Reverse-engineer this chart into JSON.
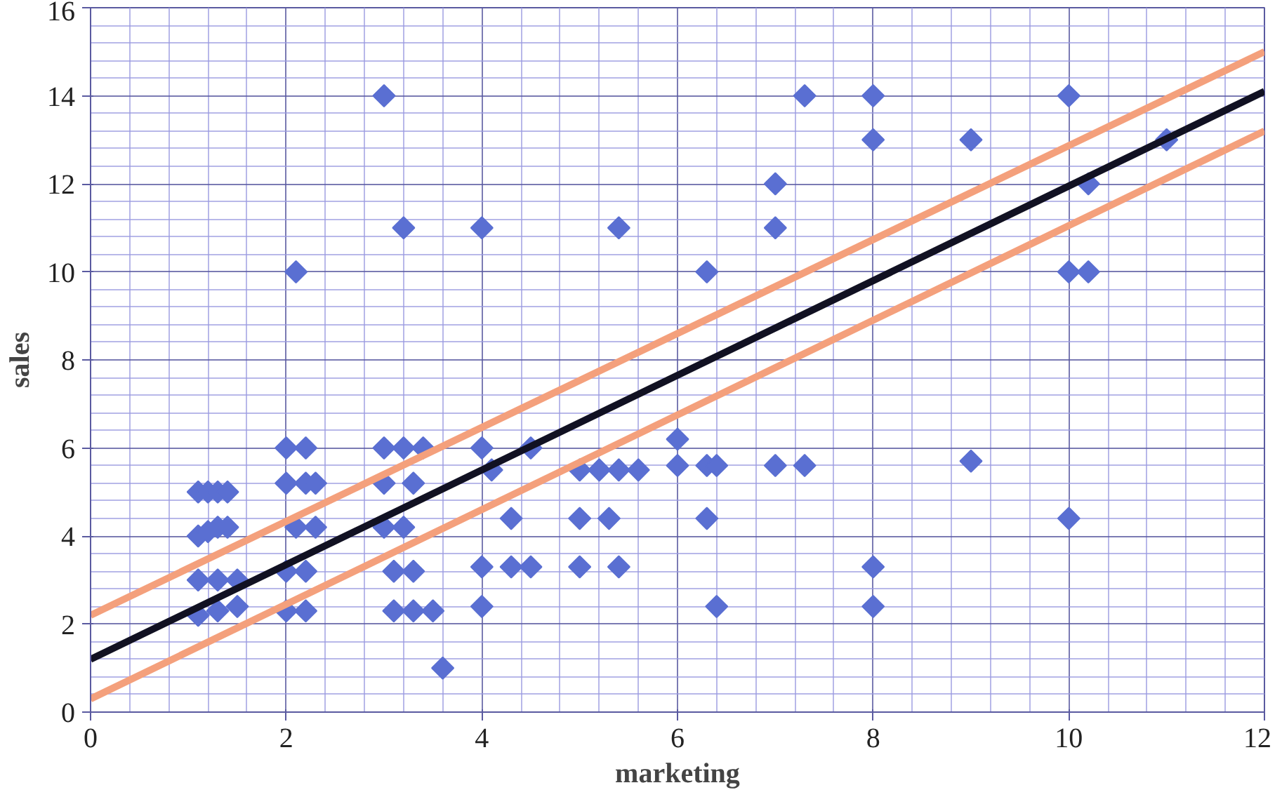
{
  "chart_data": {
    "type": "scatter",
    "xlabel": "marketing",
    "ylabel": "sales",
    "marker": "none",
    "xlim": [
      0,
      12
    ],
    "ylim": [
      0,
      16
    ],
    "xticks": [
      0,
      {
        "value": 0.4,
        "label": null
      },
      {
        "value": 0.8,
        "label": null
      },
      {
        "value": 1.2,
        "label": null
      },
      {
        "value": 1.6,
        "label": null
      },
      2,
      {
        "value": 2.4,
        "label": null
      },
      {
        "value": 2.8,
        "label": null
      },
      {
        "value": 3.2,
        "label": null
      },
      {
        "value": 3.6,
        "label": null
      },
      4,
      {
        "value": 4.4,
        "label": null
      },
      {
        "value": 4.8,
        "label": null
      },
      {
        "value": 5.2,
        "label": null
      },
      {
        "value": 5.6,
        "label": null
      },
      6,
      {
        "value": 6.4,
        "label": null
      },
      {
        "value": 6.8,
        "label": null
      },
      {
        "value": 7.2,
        "label": null
      },
      {
        "value": 7.6,
        "label": null
      },
      8,
      {
        "value": 8.4,
        "label": null
      },
      {
        "value": 8.8,
        "label": null
      },
      {
        "value": 9.2,
        "label": null
      },
      {
        "value": 9.6,
        "label": null
      },
      10,
      {
        "value": 10.4,
        "label": null
      },
      {
        "value": 10.8,
        "label": null
      },
      {
        "value": 11.2,
        "label": null
      },
      {
        "value": 11.6,
        "label": null
      },
      12
    ],
    "yticks": [
      0,
      {
        "value": 0.4,
        "label": null
      },
      {
        "value": 0.8,
        "label": null
      },
      {
        "value": 1.2,
        "label": null
      },
      {
        "value": 1.6,
        "label": null
      },
      2,
      {
        "value": 2.4,
        "label": null
      },
      {
        "value": 2.8,
        "label": null
      },
      {
        "value": 3.2,
        "label": null
      },
      {
        "value": 3.6,
        "label": null
      },
      4,
      {
        "value": 4.4,
        "label": null
      },
      {
        "value": 4.8,
        "label": null
      },
      {
        "value": 5.2,
        "label": null
      },
      {
        "value": 5.6,
        "label": null
      },
      6,
      {
        "value": 6.4,
        "label": null
      },
      {
        "value": 6.8,
        "label": null
      },
      {
        "value": 7.2,
        "label": null
      },
      {
        "value": 7.6,
        "label": null
      },
      8,
      {
        "value": 8.4,
        "label": null
      },
      {
        "value": 8.8,
        "label": null
      },
      {
        "value": 9.2,
        "label": null
      },
      {
        "value": 9.6,
        "label": null
      },
      10,
      {
        "value": 10.4,
        "label": null
      },
      {
        "value": 10.8,
        "label": null
      },
      {
        "value": 11.2,
        "label": null
      },
      {
        "value": 11.6,
        "label": null
      },
      12,
      {
        "value": 12.4,
        "label": null
      },
      {
        "value": 12.8,
        "label": null
      },
      {
        "value": 13.2,
        "label": null
      },
      {
        "value": 13.6,
        "label": null
      },
      14,
      {
        "value": 14.4,
        "label": null
      },
      {
        "value": 14.8,
        "label": null
      },
      {
        "value": 15.2,
        "label": null
      },
      {
        "value": 15.6,
        "label": null
      },
      16
    ],
    "grid": true,
    "series": [
      {
        "marker": "diamond",
        "color": "#5a6fd2",
        "x": [
          1.1,
          1.2,
          1.3,
          1.4,
          1.1,
          1.2,
          1.3,
          1.4,
          1.1,
          1.3,
          1.5,
          1.1,
          1.3,
          1.5,
          2.0,
          2.1,
          2.2,
          2.0,
          2.2,
          2.3,
          2.1,
          2.3,
          2.0,
          2.2,
          2.0,
          2.2,
          3.0,
          3.2,
          3.0,
          3.2,
          3.4,
          3.0,
          3.3,
          3.0,
          3.2,
          3.1,
          3.3,
          3.1,
          3.3,
          3.5,
          3.6,
          4.0,
          4.0,
          4.5,
          4.1,
          4.3,
          4.0,
          4.3,
          4.5,
          4.0,
          5.4,
          5.0,
          5.2,
          5.4,
          5.6,
          5.0,
          5.3,
          5.4,
          5.0,
          6.3,
          6.0,
          6.0,
          6.3,
          6.4,
          6.3,
          6.4,
          7.0,
          7.0,
          7.0,
          7.3,
          7.3,
          8.0,
          8.0,
          8.0,
          8.0,
          9.0,
          9.0,
          10.0,
          10.0,
          10.2,
          10.2,
          10.0,
          11.0
        ],
        "values": [
          5,
          5,
          5,
          5,
          4,
          4.1,
          4.2,
          4.2,
          3,
          3,
          3,
          2.2,
          2.3,
          2.4,
          6,
          10,
          6,
          5.2,
          5.2,
          5.2,
          4.2,
          4.2,
          3.2,
          3.2,
          2.3,
          2.3,
          14,
          11,
          6,
          6,
          6,
          5.2,
          5.2,
          4.2,
          4.2,
          3.2,
          3.2,
          2.3,
          2.3,
          2.3,
          1,
          11,
          6,
          6,
          5.5,
          4.4,
          3.3,
          3.3,
          3.3,
          2.4,
          11,
          5.5,
          5.5,
          5.5,
          5.5,
          4.4,
          4.4,
          3.3,
          3.3,
          10,
          6.2,
          5.6,
          5.6,
          5.6,
          4.4,
          2.4,
          12,
          11,
          5.6,
          5.6,
          14,
          14,
          13,
          3.3,
          2.4,
          13,
          5.7,
          14,
          10,
          10,
          12,
          4.4,
          13
        ]
      },
      {
        "type": "line",
        "color": "#111122",
        "x": [
          0,
          12
        ],
        "values": [
          1.2,
          14.1
        ]
      },
      {
        "type": "line",
        "color": "#f4a07c",
        "x": [
          0,
          12
        ],
        "values": [
          2.2,
          15.0
        ]
      },
      {
        "type": "line",
        "color": "#f4a07c",
        "x": [
          0,
          12
        ],
        "values": [
          0.3,
          13.2
        ]
      }
    ]
  }
}
